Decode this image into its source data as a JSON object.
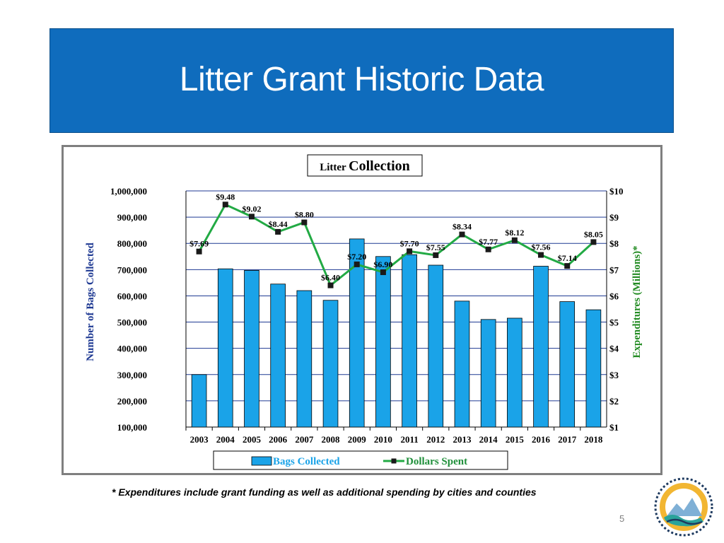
{
  "slide": {
    "title": "Litter Grant Historic Data",
    "footnote": "* Expenditures include grant funding as well as additional spending by cities and counties",
    "page_number": "5"
  },
  "colors": {
    "banner": "#0f6cbd",
    "bars": "#1aa3e8",
    "line": "#22aa44",
    "grid": "#1f3a93",
    "right_axis_title": "#228b22",
    "left_axis_title": "#1f3a93",
    "legend_bar_text": "#1aa3e8",
    "legend_line_text": "#1f8f3a"
  },
  "chart_data": {
    "type": "bar",
    "title_small": "Litter",
    "title_large": "Collection",
    "categories": [
      "2003",
      "2004",
      "2005",
      "2006",
      "2007",
      "2008",
      "2009",
      "2010",
      "2011",
      "2012",
      "2013",
      "2014",
      "2015",
      "2016",
      "2017",
      "2018"
    ],
    "series": [
      {
        "name": "Bags Collected",
        "type": "bar",
        "axis": "left",
        "values": [
          300000,
          703000,
          697000,
          645000,
          620000,
          583000,
          817000,
          750000,
          757000,
          717000,
          580000,
          510000,
          515000,
          713000,
          578000,
          547000
        ]
      },
      {
        "name": "Dollars Spent",
        "type": "line",
        "axis": "right",
        "values": [
          7.69,
          9.48,
          9.02,
          8.44,
          8.8,
          6.4,
          7.2,
          6.9,
          7.7,
          7.55,
          8.34,
          7.77,
          8.12,
          7.56,
          7.14,
          8.05
        ],
        "labels": [
          "$7.69",
          "$9.48",
          "$9.02",
          "$8.44",
          "$8.80",
          "$6.40",
          "$7.20",
          "$6.90",
          "$7.70",
          "$7.55",
          "$8.34",
          "$7.77",
          "$8.12",
          "$7.56",
          "$7.14",
          "$8.05"
        ]
      }
    ],
    "ylabel": "Number of Bags Collected",
    "y2label": "Expenditures (Millions)*",
    "ylim": [
      100000,
      1000000
    ],
    "y2lim": [
      1,
      10
    ],
    "yticks": [
      "1,000,000",
      "900,000",
      "800,000",
      "700,000",
      "600,000",
      "500,000",
      "400,000",
      "300,000",
      "200,000",
      "100,000"
    ],
    "y2ticks": [
      "$10",
      "$9",
      "$8",
      "$7",
      "$6",
      "$5",
      "$4",
      "$3",
      "$2",
      "$1"
    ],
    "grid": true,
    "legend_position": "bottom"
  }
}
